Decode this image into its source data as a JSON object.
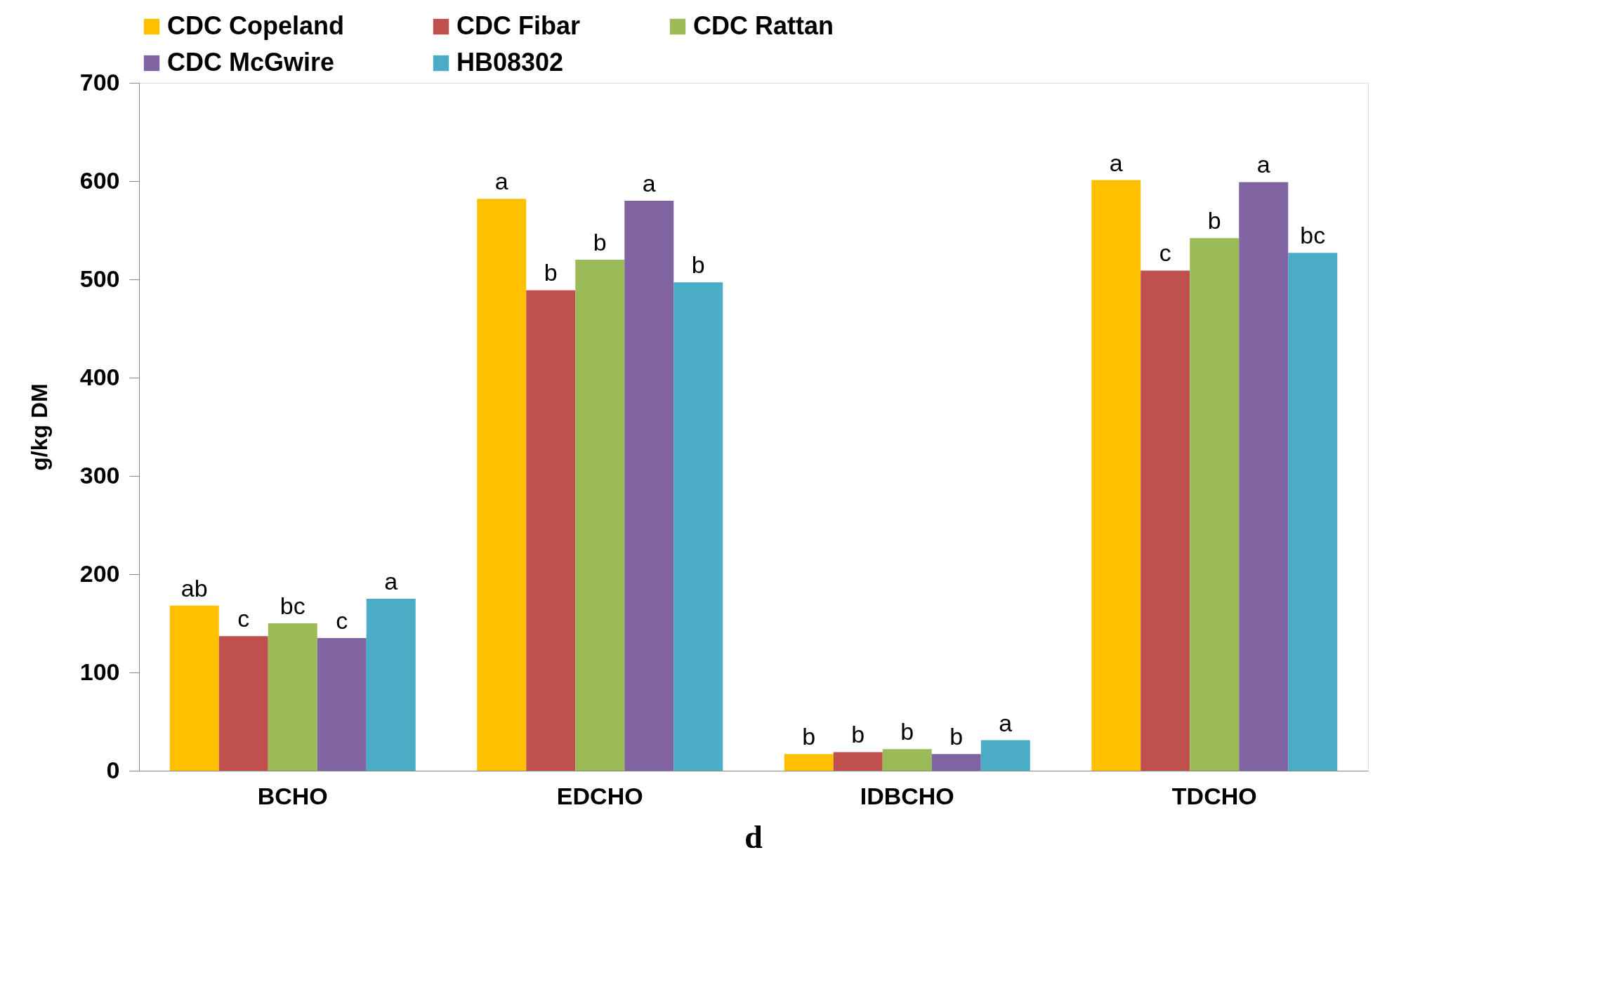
{
  "chart_data": {
    "type": "bar",
    "ylabel": "g/kg DM",
    "categories": [
      "BCHO",
      "EDCHO",
      "IDBCHO",
      "TDCHO"
    ],
    "series": [
      {
        "name": "CDC Copeland",
        "color": "#ffc000",
        "values": [
          168,
          582,
          17,
          601
        ],
        "value_labels": [
          "ab",
          "a",
          "b",
          "a"
        ]
      },
      {
        "name": "CDC Fibar",
        "color": "#c0504d",
        "values": [
          137,
          489,
          19,
          509
        ],
        "value_labels": [
          "c",
          "b",
          "b",
          "c"
        ]
      },
      {
        "name": "CDC Rattan",
        "color": "#9bbb59",
        "values": [
          150,
          520,
          22,
          542
        ],
        "value_labels": [
          "bc",
          "b",
          "b",
          "b"
        ]
      },
      {
        "name": "CDC McGwire",
        "color": "#8064a2",
        "values": [
          135,
          580,
          17,
          599
        ],
        "value_labels": [
          "c",
          "a",
          "b",
          "a"
        ]
      },
      {
        "name": "HB08302",
        "color": "#4bacc6",
        "values": [
          175,
          497,
          31,
          527
        ],
        "value_labels": [
          "a",
          "b",
          "a",
          "bc"
        ]
      }
    ],
    "ylim": [
      0,
      700
    ],
    "yticks": [
      0,
      100,
      200,
      300,
      400,
      500,
      600,
      700
    ],
    "grid": false,
    "legend": "top",
    "annotations": [
      "d"
    ]
  }
}
